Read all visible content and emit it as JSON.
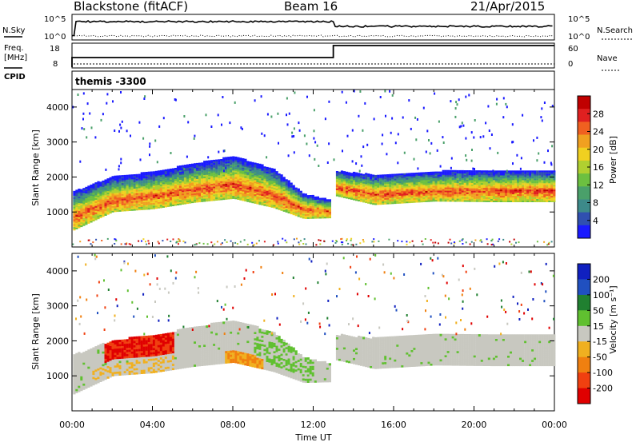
{
  "header": {
    "title": "Blackstone (fitACF)",
    "beam": "Beam 16",
    "date": "21/Apr/2015"
  },
  "summary": {
    "left_labels": {
      "nsky": "N.Sky",
      "freq": "Freq.",
      "freq_unit": "[MHz]",
      "cpid": "CPID"
    },
    "right_labels": {
      "nsearch": "N.Search",
      "nave": "Nave"
    },
    "nsky_ticks": [
      "10^5",
      "10^0"
    ],
    "freq_ticks": [
      "18",
      "8"
    ],
    "nsearch_ticks": [
      "10^5",
      "10^0"
    ],
    "nave_ticks": [
      "60",
      "0"
    ],
    "cpid_text": "themis -3300",
    "freq_step": {
      "time_hours": 13.0
    }
  },
  "chart_data": [
    {
      "type": "heatmap",
      "panel": "power",
      "ylabel": "Slant Range [km]",
      "xlabel": "",
      "ylim": [
        0,
        4500
      ],
      "yticks": [
        "1000",
        "2000",
        "3000",
        "4000"
      ],
      "colorbar": {
        "label": "Power [dB]",
        "ticks": [
          "4",
          "8",
          "12",
          "16",
          "20",
          "24",
          "28"
        ],
        "colors": [
          "#1a1aff",
          "#3050b0",
          "#3d8a8a",
          "#4aa06a",
          "#6cc040",
          "#b0d030",
          "#f0d020",
          "#f0a020",
          "#f06020",
          "#e02020",
          "#c00000"
        ]
      },
      "backscatter_band": [
        {
          "time": 0,
          "center": 850,
          "width": 1100
        },
        {
          "time": 2,
          "center": 1350,
          "width": 1000
        },
        {
          "time": 4,
          "center": 1450,
          "width": 1050
        },
        {
          "time": 6,
          "center": 1650,
          "width": 1100
        },
        {
          "time": 8,
          "center": 1800,
          "width": 1200
        },
        {
          "time": 10,
          "center": 1500,
          "width": 1100
        },
        {
          "time": 11.5,
          "center": 1050,
          "width": 700
        },
        {
          "time": 12.8,
          "center": 1000,
          "width": 500
        },
        {
          "time": 13.1,
          "center": 1700,
          "width": 700
        },
        {
          "time": 15,
          "center": 1500,
          "width": 850
        },
        {
          "time": 18,
          "center": 1600,
          "width": 850
        },
        {
          "time": 21,
          "center": 1600,
          "width": 900
        },
        {
          "time": 24,
          "center": 1600,
          "width": 900
        }
      ]
    },
    {
      "type": "heatmap",
      "panel": "velocity",
      "ylabel": "Slant Range [km]",
      "xlabel": "Time UT",
      "ylim": [
        0,
        4500
      ],
      "yticks": [
        "1000",
        "2000",
        "3000",
        "4000"
      ],
      "xticks": [
        "00:00",
        "04:00",
        "08:00",
        "12:00",
        "16:00",
        "20:00",
        "00:00"
      ],
      "colorbar": {
        "label": "Velocity [m s⁻¹]",
        "ticks": [
          "200",
          "100",
          "50",
          "15",
          "-15",
          "-50",
          "-100",
          "-200"
        ],
        "colors": [
          "#1020c0",
          "#2050c0",
          "#208030",
          "#60c030",
          "#c8c8c0",
          "#f0b020",
          "#f08010",
          "#f04010",
          "#e00000"
        ]
      }
    }
  ]
}
